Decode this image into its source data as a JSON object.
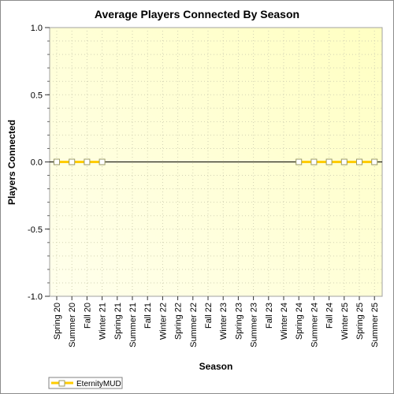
{
  "chart_data": {
    "type": "line",
    "title": "Average Players Connected By Season",
    "xlabel": "Season",
    "ylabel": "Players Connected",
    "ylim": [
      -1.0,
      1.0
    ],
    "yticks": [
      "1.0",
      "0.5",
      "0.0",
      "-0.5",
      "-1.0"
    ],
    "ytick_values": [
      1.0,
      0.5,
      0.0,
      -0.5,
      -1.0
    ],
    "categories": [
      "Spring 20",
      "Summer 20",
      "Fall 20",
      "Winter 21",
      "Spring 21",
      "Summer 21",
      "Fall 21",
      "Winter 22",
      "Spring 22",
      "Summer 22",
      "Fall 22",
      "Winter 23",
      "Spring 23",
      "Summer 23",
      "Fall 23",
      "Winter 24",
      "Spring 24",
      "Summer 24",
      "Fall 24",
      "Winter 25",
      "Spring 25",
      "Summer 25"
    ],
    "series": [
      {
        "name": "EternityMUD",
        "color": "#ffcc00",
        "values": [
          0,
          0,
          0,
          0,
          null,
          null,
          null,
          null,
          null,
          null,
          null,
          null,
          null,
          null,
          null,
          null,
          0,
          0,
          0,
          0,
          0,
          0
        ]
      }
    ],
    "grid": true,
    "legend": "bottom-left",
    "background": "#ffffe0"
  }
}
